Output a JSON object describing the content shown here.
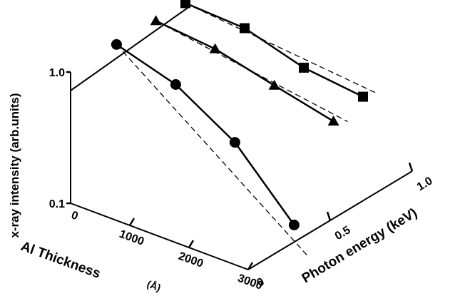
{
  "chart_data": {
    "type": "line",
    "projection": "3d",
    "xlabel": "Al Thickness",
    "xlabel_unit": "(Å)",
    "ylabel": "x-ray intensity (arb.units)",
    "zlabel": "Photon energy (keV)",
    "x_ticks": [
      "0",
      "1000",
      "2000",
      "3000"
    ],
    "y_ticks": [
      "1.0",
      "0.1"
    ],
    "z_ticks": [
      "0",
      "0.5",
      "1.0"
    ],
    "xlim": [
      0,
      3000
    ],
    "zlim": [
      0,
      1.0
    ],
    "y_scale": "log",
    "ylim": [
      0.1,
      1.0
    ],
    "grid": false,
    "series": [
      {
        "marker": "circle",
        "photon_energy": 0.28,
        "x": [
          0,
          1000,
          2000,
          3000
        ],
        "y": [
          1.0,
          0.73,
          0.39,
          0.135
        ],
        "trend_y_end": 0.085
      },
      {
        "marker": "triangle",
        "photon_energy": 0.52,
        "x": [
          0,
          1000,
          2000,
          3000
        ],
        "y": [
          1.0,
          0.9,
          0.7,
          0.55
        ],
        "trend_y_end": 0.6
      },
      {
        "marker": "square",
        "photon_energy": 0.7,
        "x": [
          0,
          1000,
          2000,
          3000
        ],
        "y": [
          1.0,
          0.95,
          0.7,
          0.62
        ],
        "trend_y_end": 0.72
      }
    ]
  }
}
